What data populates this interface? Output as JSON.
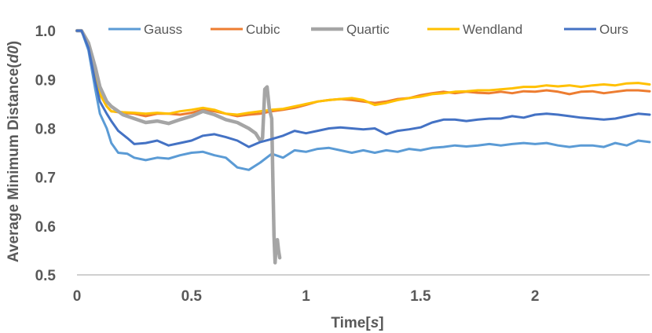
{
  "chart_data": {
    "type": "line",
    "title": "",
    "xlabel_parts": [
      "Time[",
      "s",
      "]"
    ],
    "ylabel_parts": [
      "Average Minimum Distance(",
      "d0",
      ")"
    ],
    "xlim": [
      0,
      2.5
    ],
    "ylim": [
      0.5,
      1.05
    ],
    "x_ticks": [
      0,
      0.5,
      1,
      1.5,
      2
    ],
    "x_tick_labels": [
      "0",
      "0.5",
      "1",
      "1.5",
      "2"
    ],
    "y_ticks": [
      0.5,
      0.6,
      0.7,
      0.8,
      0.9,
      1.0
    ],
    "y_tick_labels": [
      "0.5",
      "0.6",
      "0.7",
      "0.8",
      "0.9",
      "1.0"
    ],
    "grid": false,
    "legend_position": "top",
    "series": [
      {
        "name": "Gauss",
        "color": "#5B9BD5",
        "points": [
          [
            0,
            1.0
          ],
          [
            0.02,
            1.0
          ],
          [
            0.05,
            0.96
          ],
          [
            0.08,
            0.88
          ],
          [
            0.1,
            0.83
          ],
          [
            0.13,
            0.8
          ],
          [
            0.15,
            0.77
          ],
          [
            0.18,
            0.75
          ],
          [
            0.22,
            0.748
          ],
          [
            0.25,
            0.74
          ],
          [
            0.3,
            0.735
          ],
          [
            0.35,
            0.74
          ],
          [
            0.4,
            0.738
          ],
          [
            0.45,
            0.745
          ],
          [
            0.5,
            0.75
          ],
          [
            0.55,
            0.752
          ],
          [
            0.6,
            0.745
          ],
          [
            0.65,
            0.74
          ],
          [
            0.7,
            0.72
          ],
          [
            0.75,
            0.715
          ],
          [
            0.8,
            0.73
          ],
          [
            0.85,
            0.748
          ],
          [
            0.9,
            0.74
          ],
          [
            0.95,
            0.755
          ],
          [
            1.0,
            0.752
          ],
          [
            1.05,
            0.758
          ],
          [
            1.1,
            0.76
          ],
          [
            1.15,
            0.755
          ],
          [
            1.2,
            0.75
          ],
          [
            1.25,
            0.755
          ],
          [
            1.3,
            0.75
          ],
          [
            1.35,
            0.755
          ],
          [
            1.4,
            0.752
          ],
          [
            1.45,
            0.758
          ],
          [
            1.5,
            0.755
          ],
          [
            1.55,
            0.76
          ],
          [
            1.6,
            0.762
          ],
          [
            1.65,
            0.765
          ],
          [
            1.7,
            0.763
          ],
          [
            1.75,
            0.765
          ],
          [
            1.8,
            0.768
          ],
          [
            1.85,
            0.765
          ],
          [
            1.9,
            0.768
          ],
          [
            1.95,
            0.77
          ],
          [
            2.0,
            0.768
          ],
          [
            2.05,
            0.77
          ],
          [
            2.1,
            0.765
          ],
          [
            2.15,
            0.762
          ],
          [
            2.2,
            0.765
          ],
          [
            2.25,
            0.765
          ],
          [
            2.3,
            0.762
          ],
          [
            2.35,
            0.77
          ],
          [
            2.4,
            0.765
          ],
          [
            2.45,
            0.775
          ],
          [
            2.5,
            0.772
          ]
        ]
      },
      {
        "name": "Cubic",
        "color": "#ED7D31",
        "points": [
          [
            0,
            1.0
          ],
          [
            0.02,
            1.0
          ],
          [
            0.05,
            0.97
          ],
          [
            0.08,
            0.91
          ],
          [
            0.1,
            0.87
          ],
          [
            0.13,
            0.845
          ],
          [
            0.15,
            0.835
          ],
          [
            0.2,
            0.832
          ],
          [
            0.25,
            0.83
          ],
          [
            0.3,
            0.825
          ],
          [
            0.35,
            0.83
          ],
          [
            0.4,
            0.83
          ],
          [
            0.45,
            0.828
          ],
          [
            0.5,
            0.832
          ],
          [
            0.55,
            0.838
          ],
          [
            0.6,
            0.835
          ],
          [
            0.65,
            0.83
          ],
          [
            0.7,
            0.825
          ],
          [
            0.75,
            0.828
          ],
          [
            0.8,
            0.83
          ],
          [
            0.85,
            0.835
          ],
          [
            0.9,
            0.838
          ],
          [
            0.95,
            0.842
          ],
          [
            1.0,
            0.848
          ],
          [
            1.05,
            0.855
          ],
          [
            1.1,
            0.858
          ],
          [
            1.15,
            0.86
          ],
          [
            1.2,
            0.858
          ],
          [
            1.25,
            0.855
          ],
          [
            1.3,
            0.852
          ],
          [
            1.35,
            0.855
          ],
          [
            1.4,
            0.86
          ],
          [
            1.45,
            0.862
          ],
          [
            1.5,
            0.868
          ],
          [
            1.55,
            0.872
          ],
          [
            1.6,
            0.875
          ],
          [
            1.65,
            0.872
          ],
          [
            1.7,
            0.875
          ],
          [
            1.75,
            0.873
          ],
          [
            1.8,
            0.872
          ],
          [
            1.85,
            0.875
          ],
          [
            1.9,
            0.872
          ],
          [
            1.95,
            0.876
          ],
          [
            2.0,
            0.875
          ],
          [
            2.05,
            0.878
          ],
          [
            2.1,
            0.875
          ],
          [
            2.15,
            0.87
          ],
          [
            2.2,
            0.875
          ],
          [
            2.25,
            0.876
          ],
          [
            2.3,
            0.872
          ],
          [
            2.35,
            0.875
          ],
          [
            2.4,
            0.878
          ],
          [
            2.45,
            0.878
          ],
          [
            2.5,
            0.876
          ]
        ]
      },
      {
        "name": "Quartic",
        "color": "#A5A5A5",
        "points": [
          [
            0,
            1.0
          ],
          [
            0.02,
            1.0
          ],
          [
            0.05,
            0.975
          ],
          [
            0.08,
            0.925
          ],
          [
            0.1,
            0.885
          ],
          [
            0.13,
            0.855
          ],
          [
            0.15,
            0.845
          ],
          [
            0.18,
            0.835
          ],
          [
            0.2,
            0.828
          ],
          [
            0.25,
            0.82
          ],
          [
            0.3,
            0.812
          ],
          [
            0.35,
            0.815
          ],
          [
            0.4,
            0.81
          ],
          [
            0.45,
            0.818
          ],
          [
            0.5,
            0.825
          ],
          [
            0.55,
            0.835
          ],
          [
            0.6,
            0.828
          ],
          [
            0.65,
            0.818
          ],
          [
            0.7,
            0.812
          ],
          [
            0.75,
            0.8
          ],
          [
            0.78,
            0.79
          ],
          [
            0.8,
            0.775
          ],
          [
            0.81,
            0.78
          ],
          [
            0.82,
            0.88
          ],
          [
            0.83,
            0.885
          ],
          [
            0.84,
            0.84
          ],
          [
            0.85,
            0.82
          ],
          [
            0.855,
            0.7
          ],
          [
            0.86,
            0.58
          ],
          [
            0.865,
            0.525
          ],
          [
            0.87,
            0.57
          ],
          [
            0.875,
            0.572
          ],
          [
            0.88,
            0.55
          ],
          [
            0.885,
            0.535
          ]
        ]
      },
      {
        "name": "Wendland",
        "color": "#FFC000",
        "points": [
          [
            0,
            1.0
          ],
          [
            0.02,
            1.0
          ],
          [
            0.05,
            0.97
          ],
          [
            0.08,
            0.91
          ],
          [
            0.1,
            0.87
          ],
          [
            0.13,
            0.845
          ],
          [
            0.15,
            0.835
          ],
          [
            0.2,
            0.833
          ],
          [
            0.25,
            0.832
          ],
          [
            0.3,
            0.83
          ],
          [
            0.35,
            0.832
          ],
          [
            0.4,
            0.83
          ],
          [
            0.45,
            0.835
          ],
          [
            0.5,
            0.838
          ],
          [
            0.55,
            0.842
          ],
          [
            0.6,
            0.838
          ],
          [
            0.65,
            0.83
          ],
          [
            0.7,
            0.828
          ],
          [
            0.75,
            0.832
          ],
          [
            0.8,
            0.835
          ],
          [
            0.85,
            0.838
          ],
          [
            0.9,
            0.84
          ],
          [
            0.95,
            0.845
          ],
          [
            1.0,
            0.85
          ],
          [
            1.05,
            0.855
          ],
          [
            1.1,
            0.858
          ],
          [
            1.15,
            0.86
          ],
          [
            1.2,
            0.862
          ],
          [
            1.25,
            0.858
          ],
          [
            1.3,
            0.848
          ],
          [
            1.35,
            0.852
          ],
          [
            1.4,
            0.858
          ],
          [
            1.45,
            0.862
          ],
          [
            1.5,
            0.865
          ],
          [
            1.55,
            0.87
          ],
          [
            1.6,
            0.872
          ],
          [
            1.65,
            0.875
          ],
          [
            1.7,
            0.876
          ],
          [
            1.75,
            0.878
          ],
          [
            1.8,
            0.878
          ],
          [
            1.85,
            0.88
          ],
          [
            1.9,
            0.882
          ],
          [
            1.95,
            0.885
          ],
          [
            2.0,
            0.885
          ],
          [
            2.05,
            0.888
          ],
          [
            2.1,
            0.886
          ],
          [
            2.15,
            0.888
          ],
          [
            2.2,
            0.885
          ],
          [
            2.25,
            0.888
          ],
          [
            2.3,
            0.89
          ],
          [
            2.35,
            0.888
          ],
          [
            2.4,
            0.892
          ],
          [
            2.45,
            0.893
          ],
          [
            2.5,
            0.89
          ]
        ]
      },
      {
        "name": "Ours",
        "color": "#4472C4",
        "points": [
          [
            0,
            1.0
          ],
          [
            0.02,
            1.0
          ],
          [
            0.05,
            0.965
          ],
          [
            0.08,
            0.895
          ],
          [
            0.1,
            0.855
          ],
          [
            0.13,
            0.83
          ],
          [
            0.15,
            0.815
          ],
          [
            0.18,
            0.795
          ],
          [
            0.22,
            0.78
          ],
          [
            0.25,
            0.768
          ],
          [
            0.3,
            0.77
          ],
          [
            0.35,
            0.775
          ],
          [
            0.4,
            0.765
          ],
          [
            0.45,
            0.77
          ],
          [
            0.5,
            0.775
          ],
          [
            0.55,
            0.785
          ],
          [
            0.6,
            0.788
          ],
          [
            0.65,
            0.782
          ],
          [
            0.7,
            0.775
          ],
          [
            0.75,
            0.762
          ],
          [
            0.8,
            0.772
          ],
          [
            0.85,
            0.778
          ],
          [
            0.9,
            0.785
          ],
          [
            0.95,
            0.795
          ],
          [
            1.0,
            0.79
          ],
          [
            1.05,
            0.795
          ],
          [
            1.1,
            0.8
          ],
          [
            1.15,
            0.802
          ],
          [
            1.2,
            0.8
          ],
          [
            1.25,
            0.798
          ],
          [
            1.3,
            0.8
          ],
          [
            1.35,
            0.788
          ],
          [
            1.4,
            0.795
          ],
          [
            1.45,
            0.798
          ],
          [
            1.5,
            0.802
          ],
          [
            1.55,
            0.812
          ],
          [
            1.6,
            0.818
          ],
          [
            1.65,
            0.818
          ],
          [
            1.7,
            0.815
          ],
          [
            1.75,
            0.818
          ],
          [
            1.8,
            0.82
          ],
          [
            1.85,
            0.82
          ],
          [
            1.9,
            0.825
          ],
          [
            1.95,
            0.822
          ],
          [
            2.0,
            0.828
          ],
          [
            2.05,
            0.83
          ],
          [
            2.1,
            0.828
          ],
          [
            2.15,
            0.825
          ],
          [
            2.2,
            0.822
          ],
          [
            2.25,
            0.82
          ],
          [
            2.3,
            0.818
          ],
          [
            2.35,
            0.82
          ],
          [
            2.4,
            0.825
          ],
          [
            2.45,
            0.83
          ],
          [
            2.5,
            0.828
          ]
        ]
      }
    ]
  }
}
